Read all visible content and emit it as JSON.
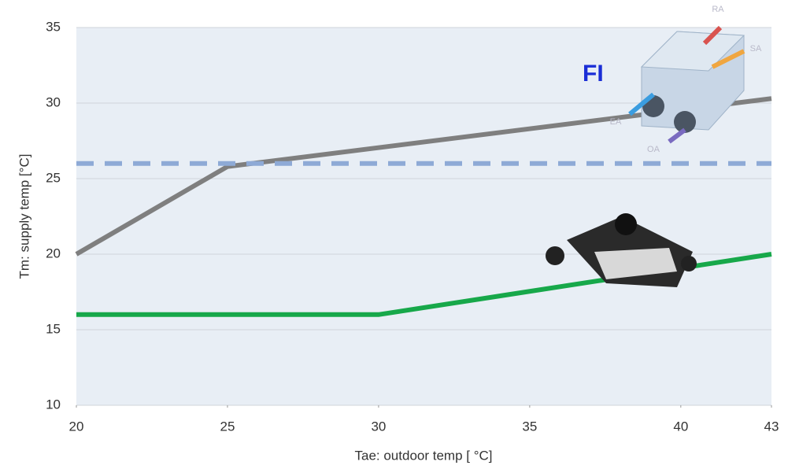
{
  "chart_data": {
    "type": "line",
    "x_label": "Tae: outdoor temp [ °C]",
    "y_label": "Tm: supply temp [°C]",
    "xlim": [
      20,
      43
    ],
    "xticks": [
      20,
      25,
      30,
      35,
      40,
      43
    ],
    "ylim": [
      10,
      35
    ],
    "yticks": [
      10,
      15,
      20,
      25,
      30,
      35
    ],
    "grid": true,
    "series": [
      {
        "color": "#7f7f7f",
        "dash": false,
        "x": [
          20,
          25,
          43
        ],
        "values": [
          20,
          25.8,
          30.3
        ]
      },
      {
        "color": "#8eaad6",
        "dash": true,
        "x": [
          20,
          43
        ],
        "values": [
          26,
          26
        ]
      },
      {
        "color": "#17a84a",
        "dash": false,
        "x": [
          20,
          30,
          43
        ],
        "values": [
          16,
          16,
          20
        ]
      }
    ],
    "annotations": {
      "label": "FI",
      "diagram_labels": [
        "RA",
        "SA",
        "EA",
        "OA"
      ]
    }
  }
}
